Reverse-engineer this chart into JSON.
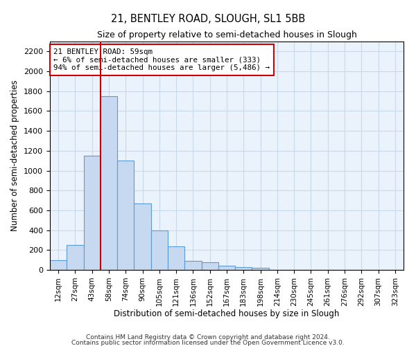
{
  "title1": "21, BENTLEY ROAD, SLOUGH, SL1 5BB",
  "title2": "Size of property relative to semi-detached houses in Slough",
  "xlabel": "Distribution of semi-detached houses by size in Slough",
  "ylabel": "Number of semi-detached properties",
  "categories": [
    "12sqm",
    "27sqm",
    "43sqm",
    "58sqm",
    "74sqm",
    "90sqm",
    "105sqm",
    "121sqm",
    "136sqm",
    "152sqm",
    "167sqm",
    "183sqm",
    "198sqm",
    "214sqm",
    "230sqm",
    "245sqm",
    "261sqm",
    "276sqm",
    "292sqm",
    "307sqm",
    "323sqm"
  ],
  "values": [
    100,
    250,
    1150,
    1750,
    1100,
    670,
    400,
    235,
    90,
    80,
    40,
    25,
    20,
    0,
    0,
    0,
    0,
    0,
    0,
    0,
    0
  ],
  "bar_color": "#c6d9f0",
  "bar_edge_color": "#5b9bd5",
  "grid_color": "#c8d8e8",
  "background_color": "#eaf2fb",
  "red_line_x": 3.0,
  "annotation_text_line1": "21 BENTLEY ROAD: 59sqm",
  "annotation_text_line2": "← 6% of semi-detached houses are smaller (333)",
  "annotation_text_line3": "94% of semi-detached houses are larger (5,486) →",
  "annotation_box_color": "#cc0000",
  "ylim": [
    0,
    2300
  ],
  "yticks": [
    0,
    200,
    400,
    600,
    800,
    1000,
    1200,
    1400,
    1600,
    1800,
    2000,
    2200
  ],
  "footer1": "Contains HM Land Registry data © Crown copyright and database right 2024.",
  "footer2": "Contains public sector information licensed under the Open Government Licence v3.0."
}
